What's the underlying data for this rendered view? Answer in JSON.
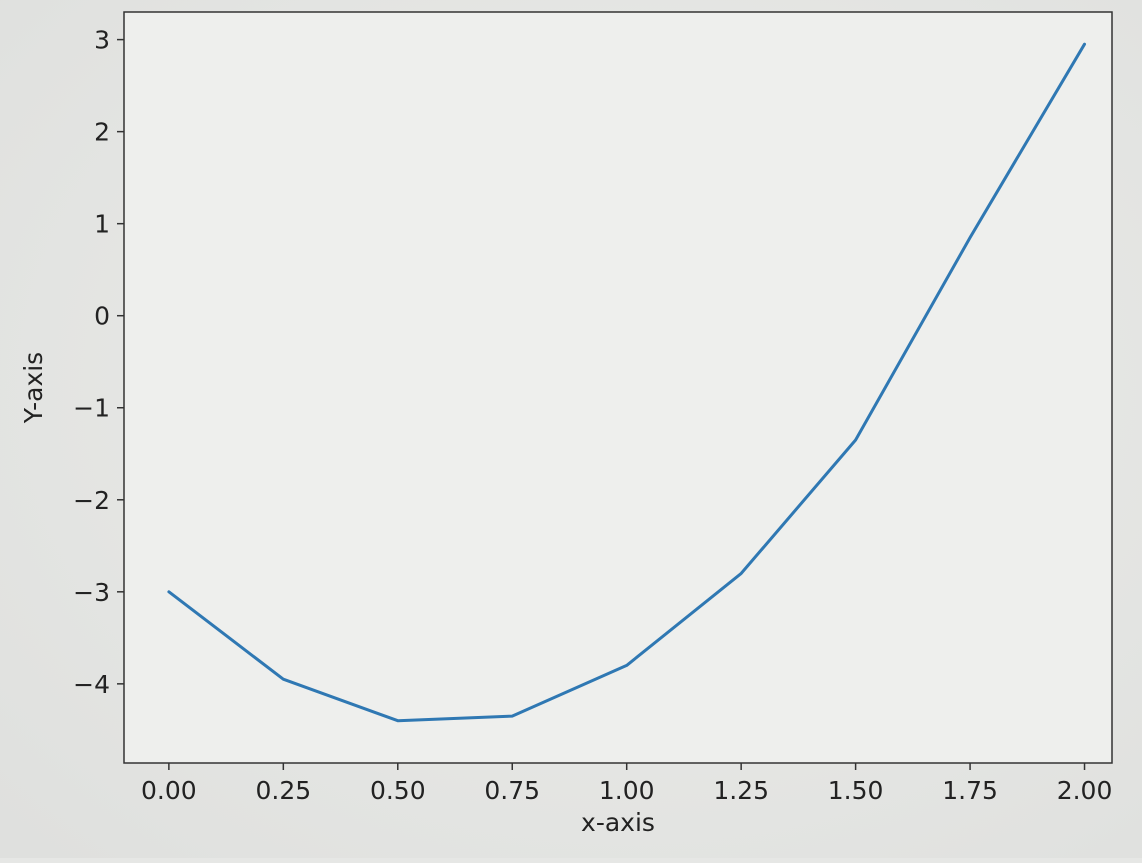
{
  "chart_data": {
    "type": "line",
    "title": "",
    "xlabel": "x-axis",
    "ylabel": "Y-axis",
    "xlim": [
      -0.098,
      2.06
    ],
    "ylim": [
      -4.86,
      3.3
    ],
    "xticks": [
      "0.00",
      "0.25",
      "0.50",
      "0.75",
      "1.00",
      "1.25",
      "1.50",
      "1.75",
      "2.00"
    ],
    "yticks": [
      "3",
      "2",
      "1",
      "0",
      "−1",
      "−2",
      "−3",
      "−4"
    ],
    "grid": false,
    "legend": "none",
    "series": [
      {
        "color": "#2f78b3",
        "x": [
          0.0,
          0.25,
          0.5,
          0.75,
          1.0,
          1.25,
          1.5,
          1.75,
          2.0
        ],
        "y": [
          -3.0,
          -3.95,
          -4.4,
          -4.35,
          -3.8,
          -2.8,
          -1.35,
          0.85,
          2.95
        ]
      }
    ]
  }
}
